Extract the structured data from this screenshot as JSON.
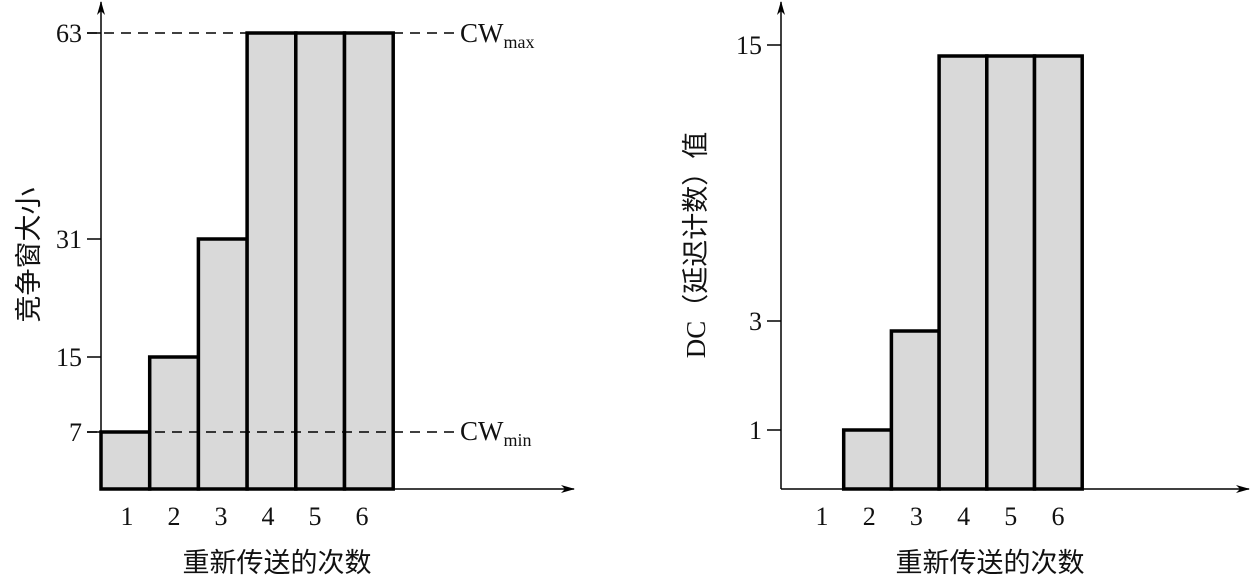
{
  "chart_data": [
    {
      "type": "bar",
      "title": "",
      "xlabel": "重新传送的次数",
      "ylabel": "竞争窗大小",
      "categories": [
        "1",
        "2",
        "3",
        "4",
        "5",
        "6"
      ],
      "values": [
        7,
        15,
        31,
        63,
        63,
        63
      ],
      "yticks": [
        7,
        15,
        31,
        63
      ],
      "ytick_labels": [
        "7",
        "15",
        "31",
        "63"
      ],
      "reference_lines": [
        {
          "value": 63,
          "label_main": "CW",
          "label_sub": "max",
          "style": "dashed"
        },
        {
          "value": 7,
          "label_main": "CW",
          "label_sub": "min",
          "style": "dashed"
        }
      ],
      "bar_color": "#d9d9d9",
      "grid": false
    },
    {
      "type": "bar",
      "title": "",
      "xlabel": "重新传送的次数",
      "ylabel": "DC（延迟计数）值",
      "categories": [
        "1",
        "2",
        "3",
        "4",
        "5",
        "6"
      ],
      "values": [
        0,
        1,
        3,
        15,
        15,
        15
      ],
      "yticks": [
        1,
        3,
        15
      ],
      "ytick_labels": [
        "1",
        "3",
        "15"
      ],
      "bar_color": "#d9d9d9",
      "grid": false
    }
  ]
}
